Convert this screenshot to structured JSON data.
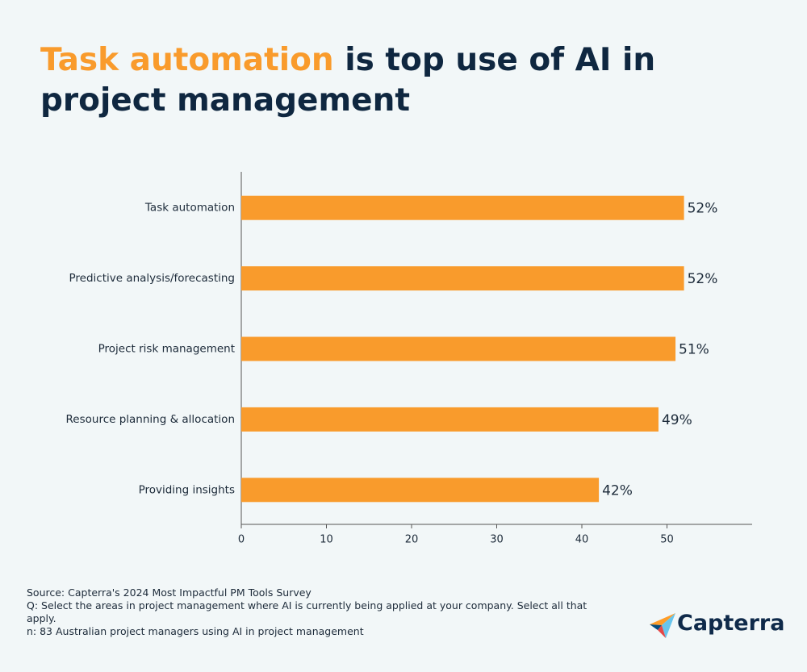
{
  "chart_data": {
    "type": "bar",
    "orientation": "horizontal",
    "title_highlight": "Task automation",
    "title_rest": "is top use of AI in project management",
    "categories": [
      "Task automation",
      "Predictive analysis/forecasting",
      "Project risk management",
      "Resource planning & allocation",
      "Providing insights"
    ],
    "values": [
      52,
      52,
      51,
      49,
      42
    ],
    "value_labels": [
      "52%",
      "52%",
      "51%",
      "49%",
      "42%"
    ],
    "color": "#f99b2c",
    "xlim": [
      0,
      60
    ],
    "xticks": [
      0,
      10,
      20,
      30,
      40,
      50
    ],
    "grid": false,
    "source": "Source: Capterra's 2024 Most Impactful PM Tools Survey",
    "question": "Q: Select the areas in project management where AI is currently being applied at your company. Select all that apply.",
    "sample": "n: 83 Australian project managers using AI in project management",
    "logo": "Capterra"
  }
}
